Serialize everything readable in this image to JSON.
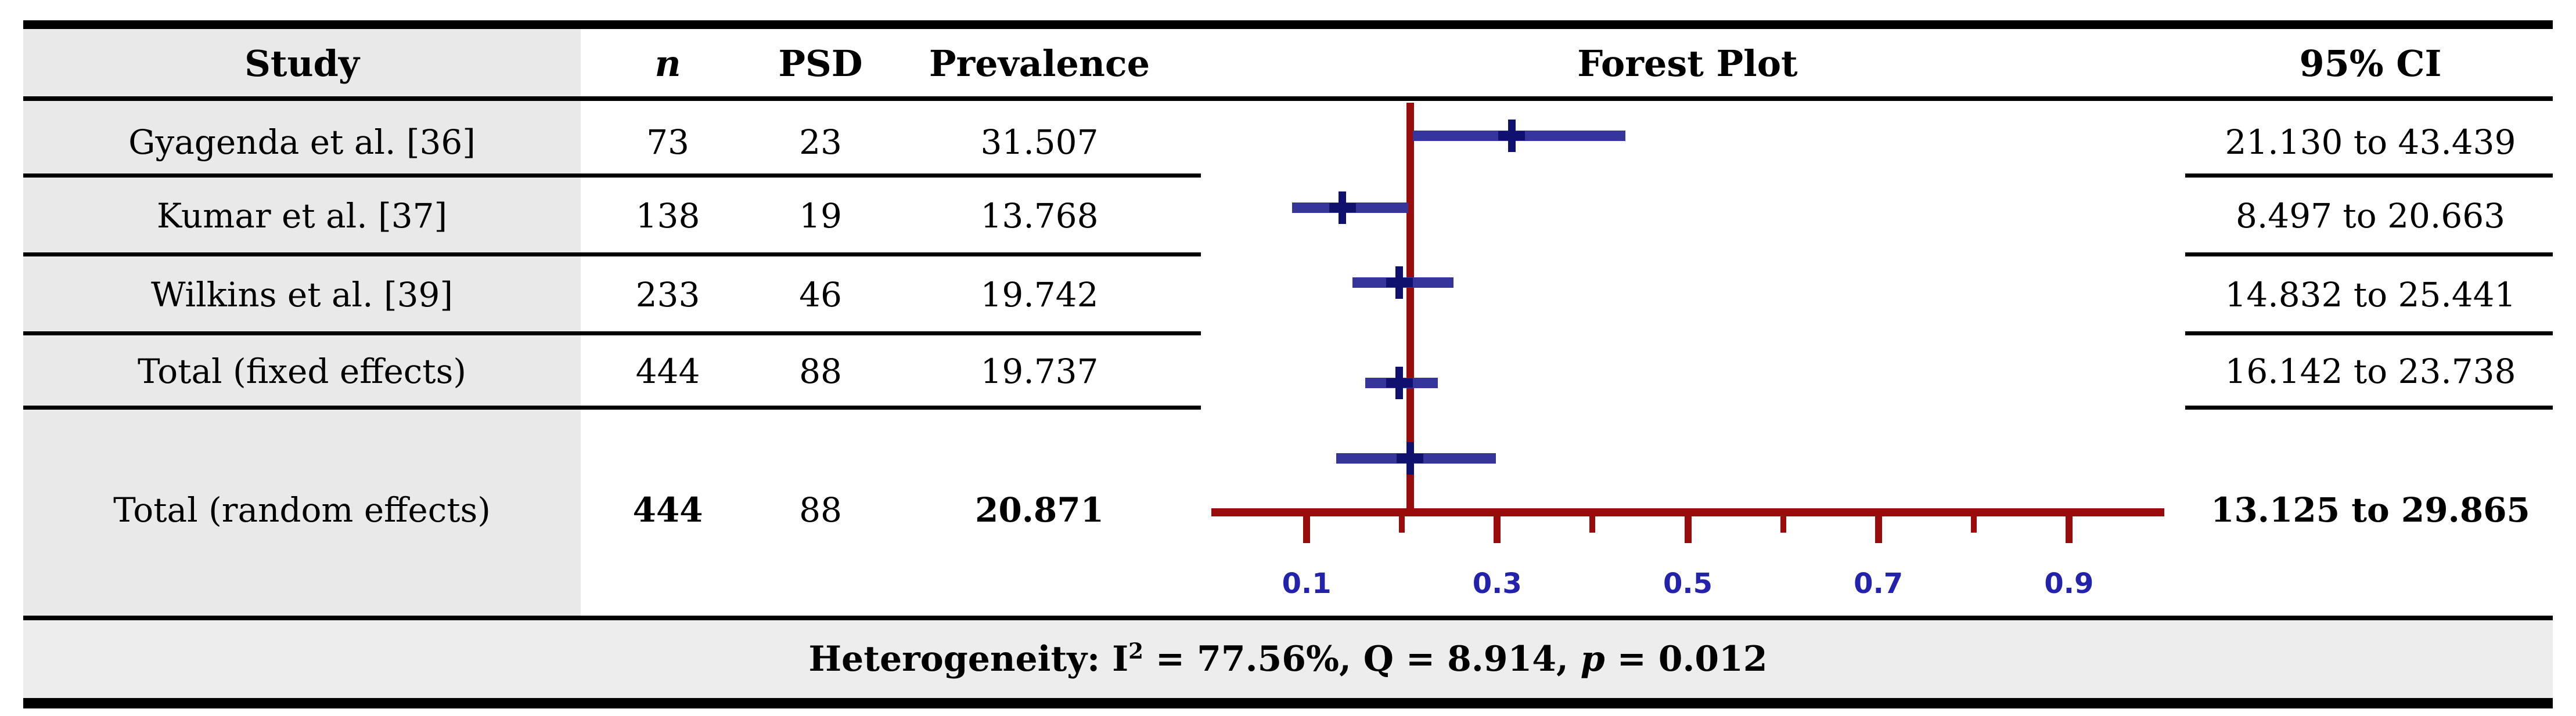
{
  "table": {
    "headers": {
      "study": "Study",
      "n": "n",
      "psd": "PSD",
      "prevalence": "Prevalence",
      "forest": "Forest Plot",
      "ci": "95% CI"
    },
    "rows": [
      {
        "study": "Gyagenda et al. [36]",
        "n": "73",
        "psd": "23",
        "prevalence": "31.507",
        "ci": "21.130 to 43.439"
      },
      {
        "study": "Kumar et al. [37]",
        "n": "138",
        "psd": "19",
        "prevalence": "13.768",
        "ci": "8.497 to 20.663"
      },
      {
        "study": "Wilkins et al. [39]",
        "n": "233",
        "psd": "46",
        "prevalence": "19.742",
        "ci": "14.832 to 25.441"
      },
      {
        "study": "Total (fixed effects)",
        "n": "444",
        "psd": "88",
        "prevalence": "19.737",
        "ci": "16.142 to 23.738"
      },
      {
        "study": "Total (random effects)",
        "n": "444",
        "psd": "88",
        "prevalence": "20.871",
        "ci": "13.125 to 29.865"
      }
    ],
    "footer": {
      "het_prefix": "Heterogeneity: I",
      "het_sup": "2",
      "het_mid": " = 77.56%, Q = 8.914, ",
      "het_p": "p",
      "het_suffix": " = 0.012"
    }
  },
  "chart_data": {
    "type": "forest",
    "title": "Forest Plot",
    "x_axis": {
      "xlim": [
        0.0,
        1.0
      ],
      "labeled_ticks": [
        0.1,
        0.3,
        0.5,
        0.7,
        0.9
      ],
      "minor_ticks": [
        0.2,
        0.4,
        0.6,
        0.8
      ],
      "tick_labels": [
        "0.1",
        "0.3",
        "0.5",
        "0.7",
        "0.9"
      ]
    },
    "reference_line": 0.20871,
    "series": [
      {
        "name": "Gyagenda et al. [36]",
        "point": 0.31507,
        "ci_low": 0.2113,
        "ci_high": 0.43439
      },
      {
        "name": "Kumar et al. [37]",
        "point": 0.13768,
        "ci_low": 0.08497,
        "ci_high": 0.20663
      },
      {
        "name": "Wilkins et al. [39]",
        "point": 0.19742,
        "ci_low": 0.14832,
        "ci_high": 0.25441
      },
      {
        "name": "Total (fixed effects)",
        "point": 0.19737,
        "ci_low": 0.16142,
        "ci_high": 0.23738
      },
      {
        "name": "Total (random effects)",
        "point": 0.20871,
        "ci_low": 0.13125,
        "ci_high": 0.29865
      }
    ]
  },
  "colors": {
    "axis_red": "#9a0c0c",
    "bar_blue": "#35359c",
    "point_navy": "#10106e",
    "tick_label_blue": "#2222aa",
    "study_col_bg": "#e9e9e9",
    "footer_bg": "#ededed",
    "rule_black": "#000000"
  }
}
